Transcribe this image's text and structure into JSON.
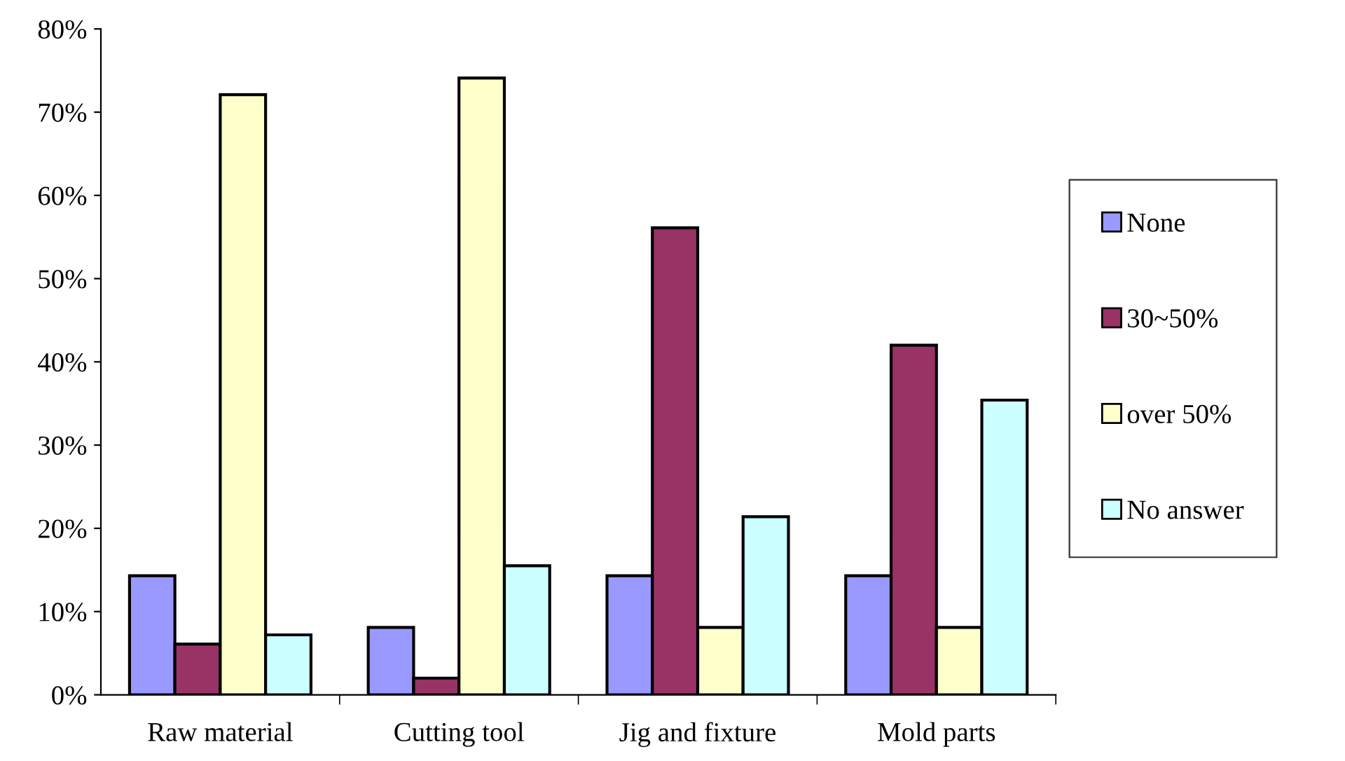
{
  "chart_data": {
    "type": "bar",
    "categories": [
      "Raw material",
      "Cutting tool",
      "Jig and fixture",
      "Mold parts"
    ],
    "series": [
      {
        "name": "None",
        "color": "#9999ff",
        "values": [
          14.3,
          8.1,
          14.3,
          14.3
        ]
      },
      {
        "name": "30~50%",
        "color": "#993366",
        "values": [
          6.1,
          2.0,
          56.1,
          42.0
        ]
      },
      {
        "name": "over 50%",
        "color": "#ffffcc",
        "values": [
          72.1,
          74.1,
          8.1,
          8.1
        ]
      },
      {
        "name": "No answer",
        "color": "#ccffff",
        "values": [
          7.2,
          15.5,
          21.4,
          35.4
        ]
      }
    ],
    "ylim": [
      0,
      80
    ],
    "yticks": [
      {
        "value": 0,
        "label": "0%"
      },
      {
        "value": 10,
        "label": "10%"
      },
      {
        "value": 20,
        "label": "20%"
      },
      {
        "value": 30,
        "label": "30%"
      },
      {
        "value": 40,
        "label": "40%"
      },
      {
        "value": 50,
        "label": "50%"
      },
      {
        "value": 60,
        "label": "60%"
      },
      {
        "value": 70,
        "label": "70%"
      },
      {
        "value": 80,
        "label": "80%"
      }
    ],
    "grid": false,
    "legend": "right"
  }
}
